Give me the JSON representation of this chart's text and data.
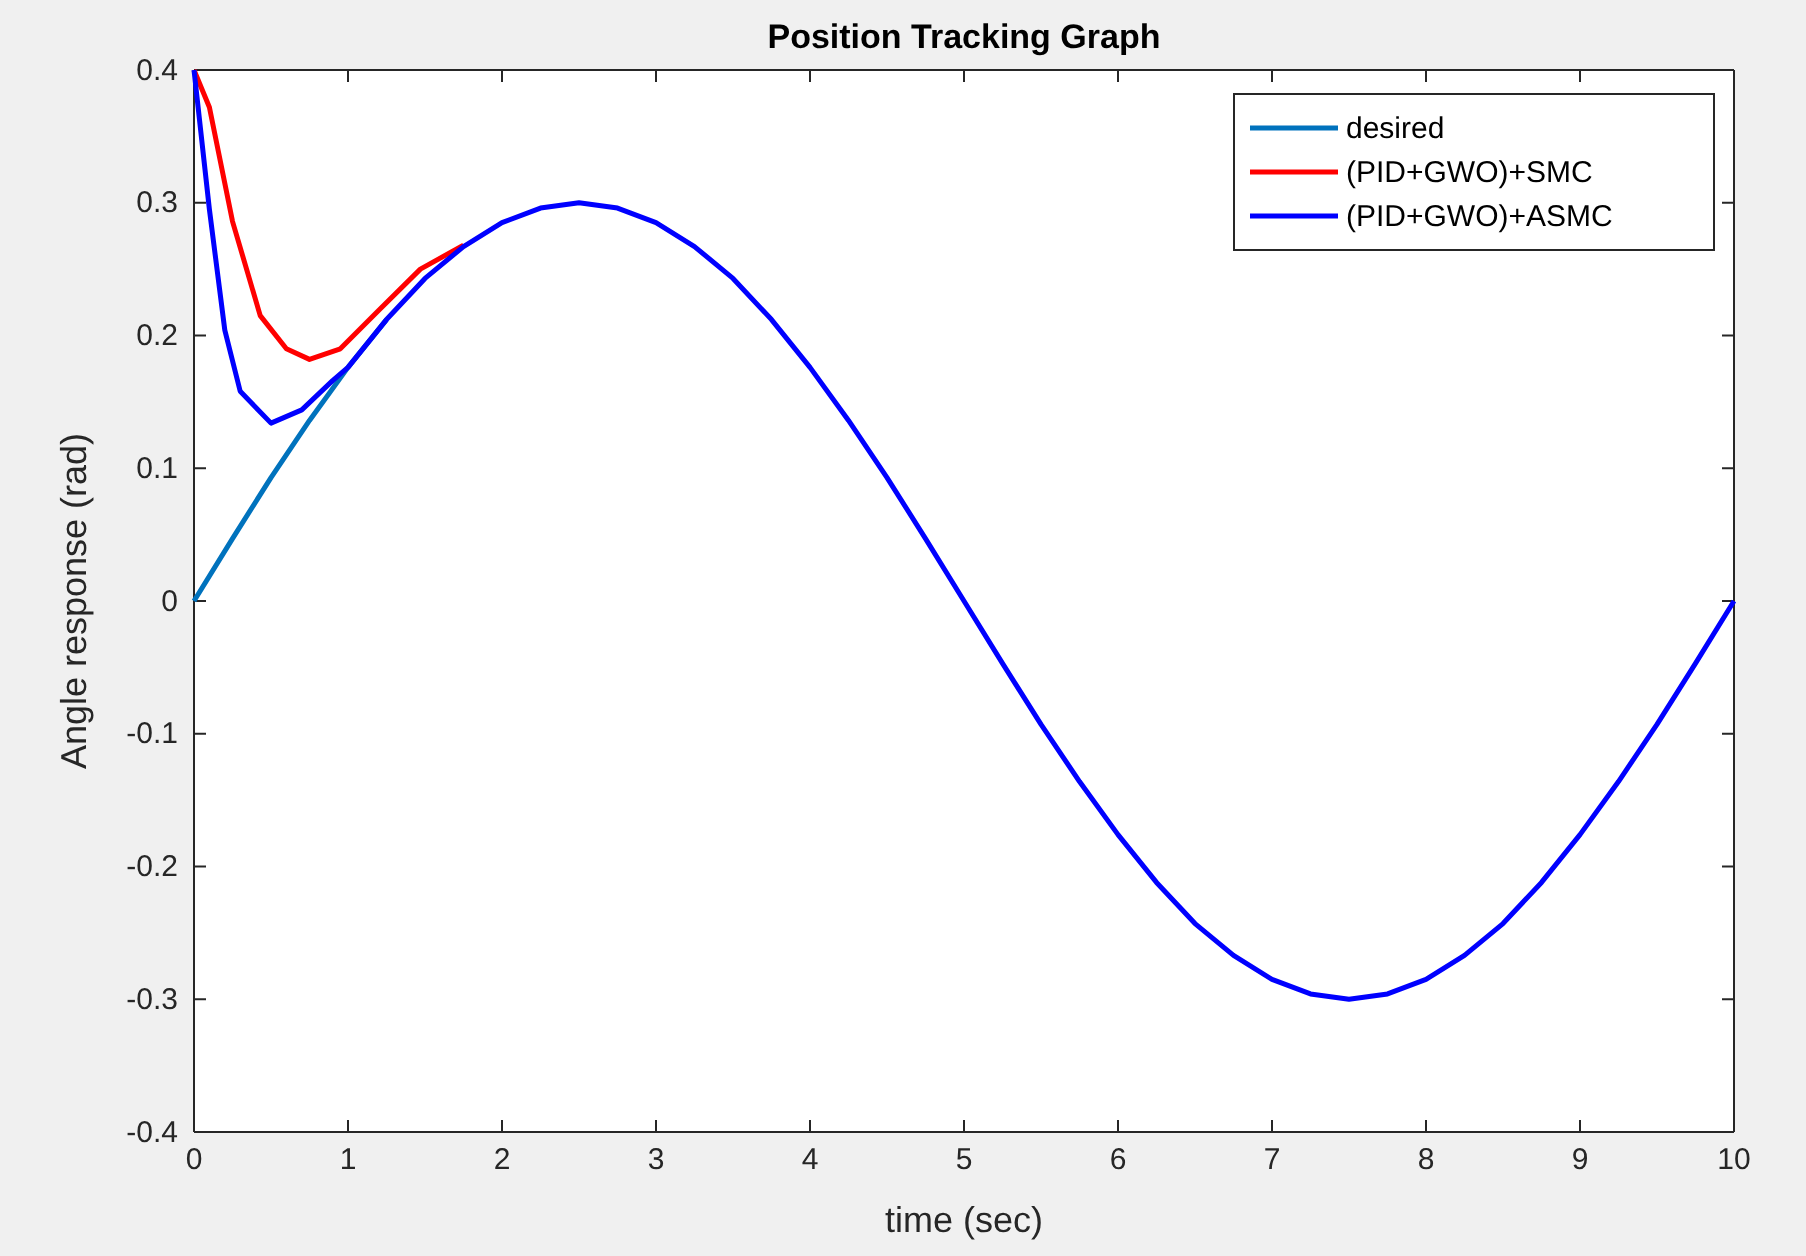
{
  "chart_data": {
    "type": "line",
    "title": "Position Tracking Graph",
    "xlabel": "time (sec)",
    "ylabel": "Angle response (rad)",
    "xlim": [
      0,
      10
    ],
    "ylim": [
      -0.4,
      0.4
    ],
    "xticks": [
      0,
      1,
      2,
      3,
      4,
      5,
      6,
      7,
      8,
      9,
      10
    ],
    "yticks": [
      -0.4,
      -0.3,
      -0.2,
      -0.1,
      0,
      0.1,
      0.2,
      0.3,
      0.4
    ],
    "legend": "top right",
    "grid": false,
    "series": [
      {
        "name": "desired",
        "color": "#0072bd",
        "x": [
          0,
          0.25,
          0.5,
          0.75,
          1,
          1.25
        ],
        "values": [
          0,
          0.047,
          0.093,
          0.136,
          0.176,
          0.212
        ]
      },
      {
        "name": "(PID+GWO)+SMC",
        "color": "#ff0000",
        "x": [
          0,
          0.1,
          0.25,
          0.43,
          0.6,
          0.75,
          0.95,
          1.2,
          1.47,
          1.75
        ],
        "values": [
          0.4,
          0.372,
          0.286,
          0.215,
          0.19,
          0.182,
          0.19,
          0.219,
          0.25,
          0.268
        ]
      },
      {
        "name": "(PID+GWO)+ASMC",
        "color": "#0000ff",
        "x": [
          0,
          0.1,
          0.2,
          0.3,
          0.5,
          0.7,
          0.9,
          1,
          1.25,
          1.5,
          1.75,
          2,
          2.25,
          2.5,
          2.75,
          3,
          3.25,
          3.5,
          3.75,
          4,
          4.25,
          4.5,
          4.75,
          5,
          5.25,
          5.5,
          5.75,
          6,
          6.25,
          6.5,
          6.75,
          7,
          7.25,
          7.5,
          7.75,
          8,
          8.25,
          8.5,
          8.75,
          9,
          9.25,
          9.5,
          9.75,
          10
        ],
        "values": [
          0.4,
          0.295,
          0.204,
          0.158,
          0.134,
          0.144,
          0.166,
          0.176,
          0.212,
          0.243,
          0.267,
          0.285,
          0.296,
          0.3,
          0.296,
          0.285,
          0.267,
          0.243,
          0.212,
          0.176,
          0.136,
          0.093,
          0.047,
          0,
          -0.047,
          -0.093,
          -0.136,
          -0.176,
          -0.212,
          -0.243,
          -0.267,
          -0.285,
          -0.296,
          -0.3,
          -0.296,
          -0.285,
          -0.267,
          -0.243,
          -0.212,
          -0.176,
          -0.136,
          -0.093,
          -0.047,
          0
        ]
      }
    ]
  }
}
